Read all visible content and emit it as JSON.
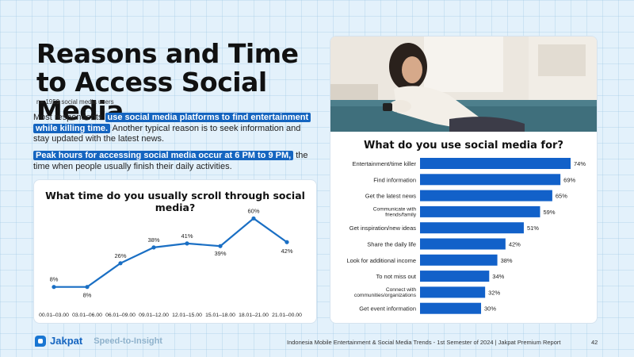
{
  "title": "Reasons and Time to Access Social Media",
  "sample": "n= 1959 social media users",
  "para1": {
    "pre": "Most respondents ",
    "hl": "use social media platforms to find entertainment while killing time.",
    "post": " Another typical reason is to seek information and stay updated with the latest news."
  },
  "para2": {
    "hl": "Peak hours for accessing social media occur at 6 PM to 9 PM,",
    "post": " the time when people usually finish their daily activities."
  },
  "chart_data": [
    {
      "type": "line",
      "title": "What time do you usually scroll through social media?",
      "categories": [
        "00.01–03.00",
        "03.01–06.00",
        "06.01–09.00",
        "09.01–12.00",
        "12.01–15.00",
        "15.01–18.00",
        "18.01–21.00",
        "21.01–00.00"
      ],
      "values": [
        8,
        8,
        26,
        38,
        41,
        39,
        60,
        42
      ],
      "value_labels": [
        "8%",
        "8%",
        "26%",
        "38%",
        "41%",
        "39%",
        "60%",
        "42%"
      ],
      "color": "#1a6fc4",
      "ylim": [
        0,
        65
      ]
    },
    {
      "type": "bar",
      "orientation": "horizontal",
      "title": "What do you use social media for?",
      "categories": [
        "Entertainment/time killer",
        "Find information",
        "Get the latest news",
        "Communicate with friends/family",
        "Get inspiration/new ideas",
        "Share the daily life",
        "Look for additional income",
        "To not miss out",
        "Connect with communities/organizations",
        "Get event information"
      ],
      "values": [
        74,
        69,
        65,
        59,
        51,
        42,
        38,
        34,
        32,
        30
      ],
      "value_labels": [
        "74%",
        "69%",
        "65%",
        "59%",
        "51%",
        "42%",
        "38%",
        "34%",
        "32%",
        "30%"
      ],
      "color": "#1261c9",
      "xlim": [
        0,
        74
      ]
    }
  ],
  "footer": {
    "logo": "Jakpat",
    "tagline": "Speed-to-Insight",
    "report": "Indonesia Mobile Entertainment & Social Media Trends - 1st Semester of 2024 | Jakpat Premium Report",
    "page": "42"
  }
}
